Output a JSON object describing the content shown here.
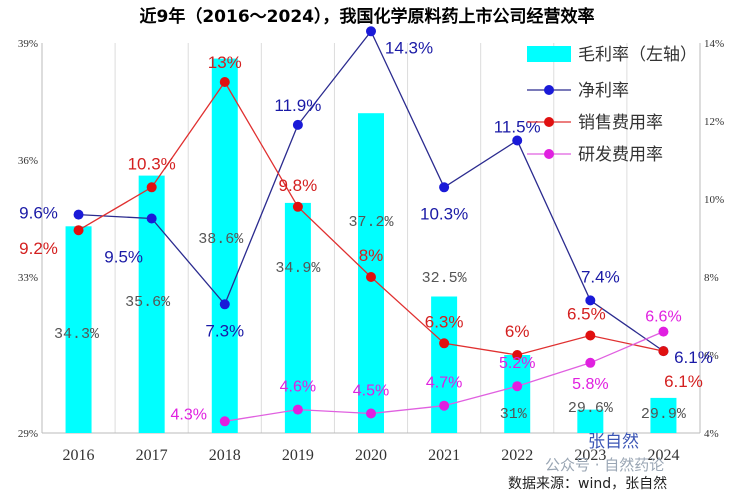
{
  "chart_data": {
    "type": "bar+line",
    "title": "近9年（2016～2024），我国化学原料药上市公司经营效率",
    "categories": [
      "2016",
      "2017",
      "2018",
      "2019",
      "2020",
      "2021",
      "2022",
      "2023",
      "2024"
    ],
    "left_axis": {
      "range": [
        29,
        39
      ],
      "ticks": [
        "39%",
        "36%",
        "33%",
        "29%"
      ],
      "tick_values": [
        39,
        36,
        33,
        29
      ]
    },
    "right_axis": {
      "range": [
        4,
        14
      ],
      "ticks": [
        "14%",
        "12%",
        "10%",
        "8%",
        "6%",
        "4%"
      ],
      "tick_values": [
        14,
        12,
        10,
        8,
        6,
        4
      ]
    },
    "series": [
      {
        "name": "毛利率（左轴）",
        "type": "bar",
        "axis": "left",
        "color": "#00ffff",
        "values": [
          34.3,
          35.6,
          38.6,
          34.9,
          37.2,
          32.5,
          31.0,
          29.6,
          29.9
        ],
        "labels": [
          "34.3%",
          "35.6%",
          "38.6%",
          "34.9%",
          "37.2%",
          "32.5%",
          "31%",
          "29.6%",
          "29.9%"
        ]
      },
      {
        "name": "净利率",
        "type": "line",
        "axis": "right",
        "color": "#1a1ad8",
        "line_color": "#2b2b8f",
        "values": [
          9.6,
          9.5,
          7.3,
          11.9,
          14.3,
          10.3,
          11.5,
          7.4,
          6.1
        ],
        "labels": [
          "9.6%",
          "9.5%",
          "7.3%",
          "11.9%",
          "14.3%",
          "10.3%",
          "11.5%",
          "7.4%",
          "6.1%"
        ]
      },
      {
        "name": "销售费用率",
        "type": "line",
        "axis": "right",
        "color": "#e01010",
        "line_color": "#e03030",
        "values": [
          9.2,
          10.3,
          13.0,
          9.8,
          8.0,
          6.3,
          6.0,
          6.5,
          6.1
        ],
        "labels": [
          "9.2%",
          "10.3%",
          "13%",
          "9.8%",
          "8%",
          "6.3%",
          "6%",
          "6.5%",
          "6.1%"
        ]
      },
      {
        "name": "研发费用率",
        "type": "line",
        "axis": "right",
        "color": "#e020e0",
        "line_color": "#e060e0",
        "values": [
          null,
          null,
          4.3,
          4.6,
          4.5,
          4.7,
          5.2,
          5.8,
          6.6
        ],
        "labels": [
          null,
          null,
          "4.3%",
          "4.6%",
          "4.5%",
          "4.7%",
          "5.2%",
          "5.8%",
          "6.6%"
        ]
      }
    ],
    "legend_position": "top-right",
    "source": "数据来源：wind，张自然",
    "watermark": "公众号 · 自然药论",
    "watermark_name": "张自然"
  }
}
